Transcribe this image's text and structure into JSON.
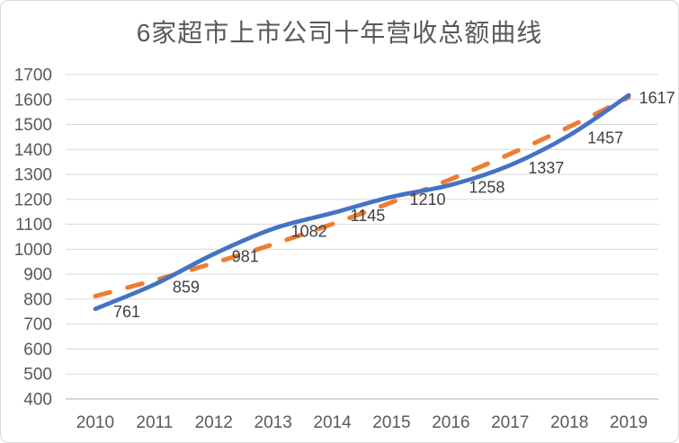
{
  "chart_data": {
    "type": "line",
    "title": "6家超市上市公司十年营收总额曲线",
    "categories": [
      "2010",
      "2011",
      "2012",
      "2013",
      "2014",
      "2015",
      "2016",
      "2017",
      "2018",
      "2019"
    ],
    "series": [
      {
        "values": [
          761,
          859,
          981,
          1082,
          1145,
          1210,
          1258,
          1337,
          1457,
          1617
        ],
        "color": "#4472C4",
        "line_style": "solid",
        "smooth": true,
        "show_data_labels": true
      }
    ],
    "trendline": {
      "shape": "exponential",
      "color": "#ED7D31",
      "line_style": "dashed",
      "values": [
        812,
        876,
        945,
        1020,
        1101,
        1188,
        1281,
        1382,
        1491,
        1609
      ]
    },
    "xlabel": "",
    "ylabel": "",
    "ylim": [
      400,
      1700
    ],
    "ytick_step": 100,
    "grid": true,
    "legend_position": "none",
    "colors": {
      "series": "#4472C4",
      "trendline": "#ED7D31",
      "gridline": "#D9D9D9",
      "axis_line": "#BFBFBF",
      "tick_label": "#595959",
      "data_label": "#404040",
      "title": "#595959",
      "border": "#D9D9D9",
      "background": "#FFFFFF"
    }
  }
}
